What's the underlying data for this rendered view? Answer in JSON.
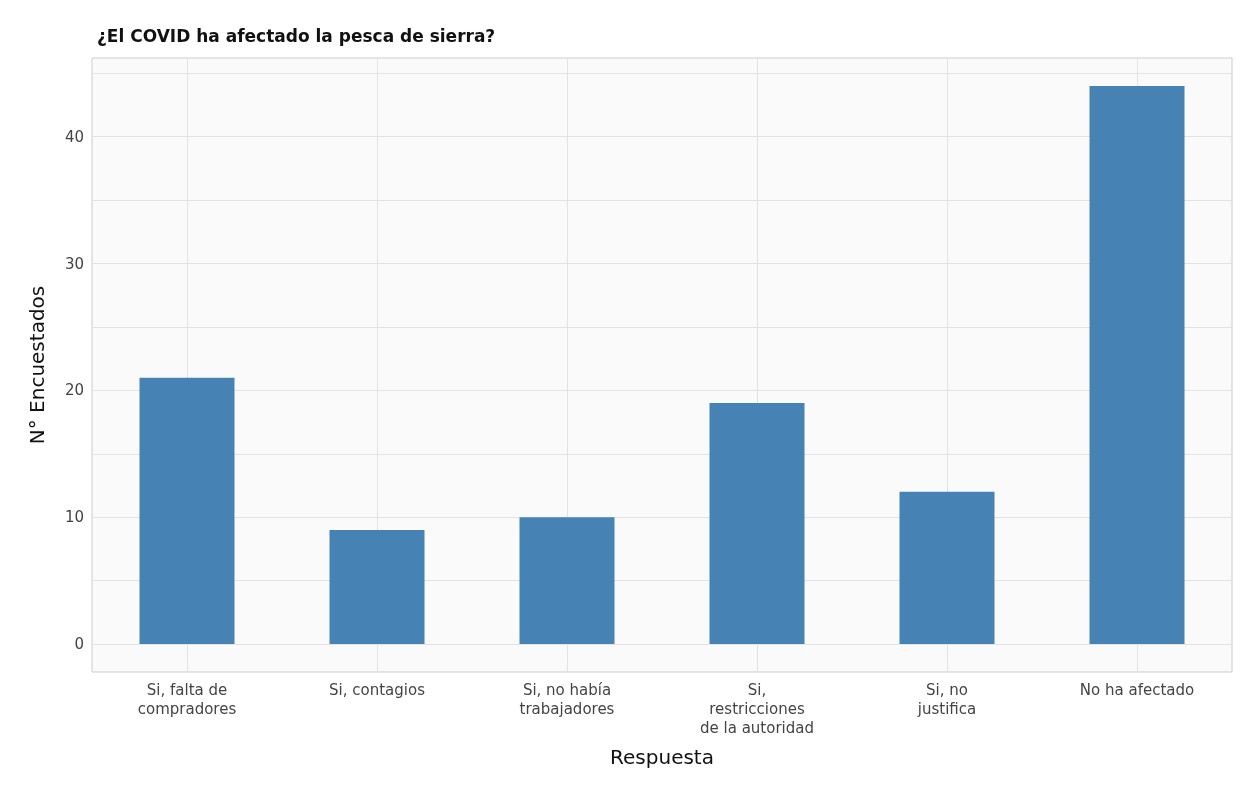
{
  "chart_data": {
    "type": "bar",
    "title": "¿El COVID ha afectado la pesca de sierra?",
    "xlabel": "Respuesta",
    "ylabel": "N° Encuestados",
    "categories": [
      "Si, falta de\ncompradores",
      "Si, contagios",
      "Si, no había\ntrabajadores",
      "Si,\nrestricciones\nde la autoridad",
      "Si, no\njustifica",
      "No ha afectado"
    ],
    "values": [
      21,
      9,
      10,
      19,
      12,
      44
    ],
    "color": "#4682b4",
    "ylim": [
      -2.2,
      46.2
    ],
    "yticks": [
      0,
      {
        "value": 5,
        "label": null
      },
      10,
      {
        "value": 15,
        "label": null
      },
      20,
      {
        "value": 25,
        "label": null
      },
      30,
      {
        "value": 35,
        "label": null
      },
      40,
      {
        "value": 45,
        "label": null
      }
    ],
    "grid": true
  }
}
